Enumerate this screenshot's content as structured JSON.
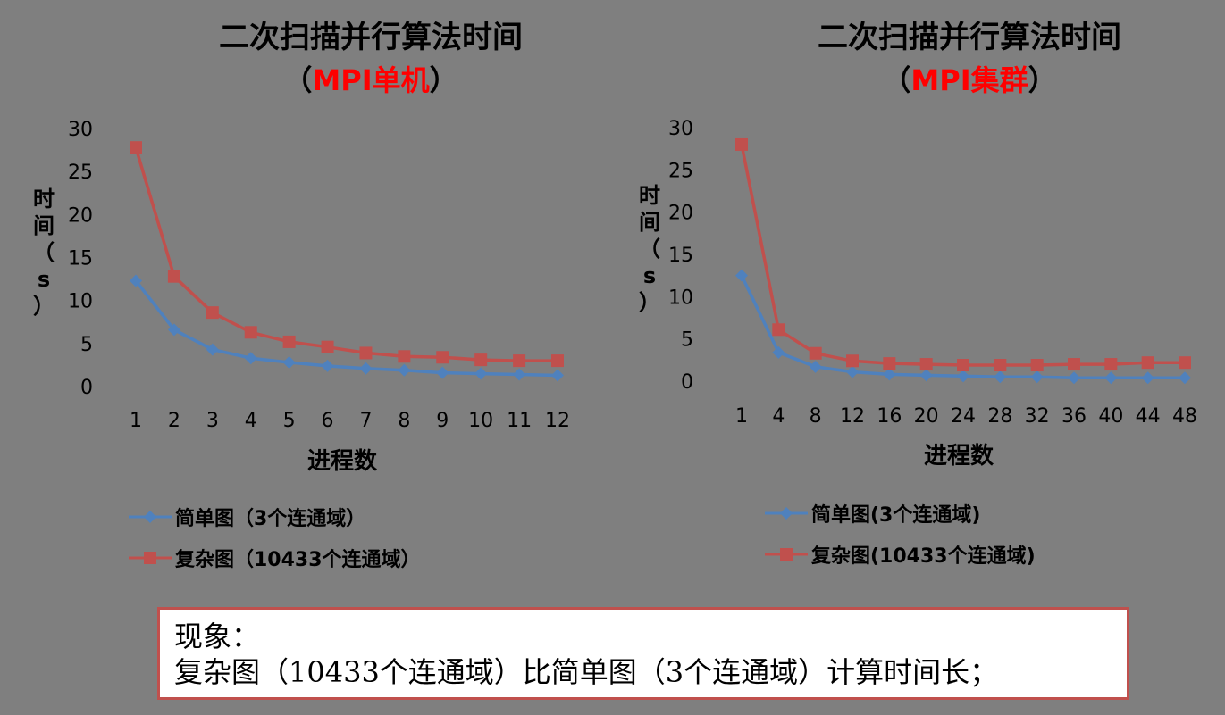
{
  "colors": {
    "simple": "#4f81bd",
    "complex": "#c0504d",
    "highlight": "#ff0000",
    "background": "#7f7f7f"
  },
  "left": {
    "title_line1": "二次扫描并行算法时间",
    "title_open": "（",
    "title_highlight": "MPI单机",
    "title_close": "）",
    "ylabel_chars": [
      "时",
      "间",
      "（",
      "s",
      "）"
    ],
    "xlabel": "进程数",
    "legend": [
      "简单图（3个连通域）",
      "复杂图（10433个连通域）"
    ]
  },
  "right": {
    "title_line1": "二次扫描并行算法时间",
    "title_open": "（",
    "title_highlight": "MPI集群",
    "title_close": "）",
    "ylabel_chars": [
      "时",
      "间",
      "（",
      "s",
      "）"
    ],
    "xlabel": "进程数",
    "legend": [
      "简单图(3个连通域)",
      "复杂图(10433个连通域)"
    ]
  },
  "note": {
    "heading": "现象：",
    "text": "复杂图（10433个连通域）比简单图（3个连通域）计算时间长；"
  },
  "chart_data": [
    {
      "type": "line",
      "title": "二次扫描并行算法时间（MPI单机）",
      "xlabel": "进程数",
      "ylabel": "时间（s）",
      "categories": [
        "1",
        "2",
        "3",
        "4",
        "5",
        "6",
        "7",
        "8",
        "9",
        "10",
        "11",
        "12"
      ],
      "ylim": [
        0,
        30
      ],
      "yticks": [
        0,
        5,
        10,
        15,
        20,
        25,
        30
      ],
      "grid": false,
      "legend_position": "bottom",
      "series": [
        {
          "name": "简单图（3个连通域）",
          "marker": "diamond",
          "values": [
            12.3,
            6.6,
            4.3,
            3.3,
            2.8,
            2.4,
            2.1,
            1.9,
            1.6,
            1.5,
            1.4,
            1.3
          ]
        },
        {
          "name": "复杂图（10433个连通域）",
          "marker": "square",
          "values": [
            27.8,
            12.8,
            8.6,
            6.3,
            5.2,
            4.6,
            3.9,
            3.5,
            3.4,
            3.1,
            3.0,
            3.0
          ]
        }
      ]
    },
    {
      "type": "line",
      "title": "二次扫描并行算法时间（MPI集群）",
      "xlabel": "进程数",
      "ylabel": "时间（s）",
      "categories": [
        "1",
        "4",
        "8",
        "12",
        "16",
        "20",
        "24",
        "28",
        "32",
        "36",
        "40",
        "44",
        "48"
      ],
      "ylim": [
        0,
        30
      ],
      "yticks": [
        0,
        5,
        10,
        15,
        20,
        25,
        30
      ],
      "grid": false,
      "legend_position": "bottom",
      "series": [
        {
          "name": "简单图(3个连通域)",
          "marker": "diamond",
          "values": [
            12.5,
            3.4,
            1.7,
            1.1,
            0.8,
            0.7,
            0.6,
            0.5,
            0.5,
            0.4,
            0.4,
            0.4,
            0.4
          ]
        },
        {
          "name": "复杂图(10433个连通域)",
          "marker": "square",
          "values": [
            28.0,
            6.1,
            3.3,
            2.4,
            2.1,
            2.0,
            1.9,
            1.9,
            1.9,
            2.0,
            2.0,
            2.2,
            2.2
          ]
        }
      ]
    }
  ]
}
